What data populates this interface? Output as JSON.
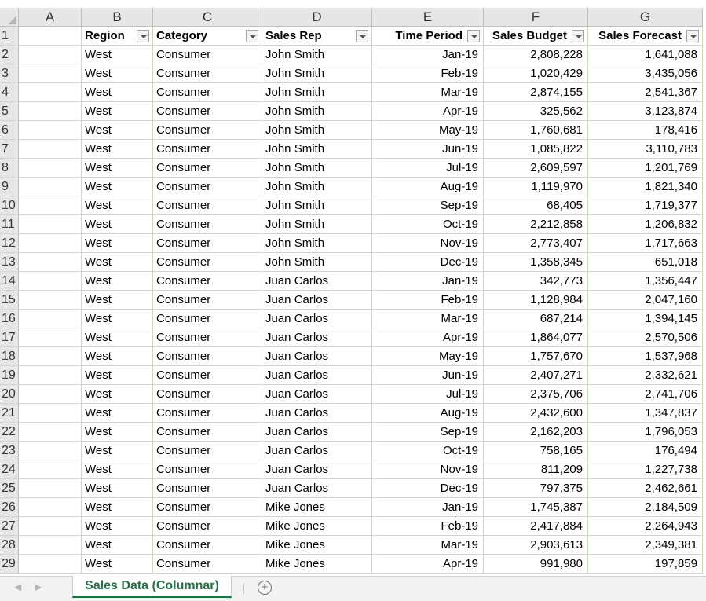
{
  "columns": [
    "A",
    "B",
    "C",
    "D",
    "E",
    "F",
    "G"
  ],
  "headers": {
    "region": "Region",
    "category": "Category",
    "sales_rep": "Sales Rep",
    "time_period": "Time Period",
    "sales_budget": "Sales Budget",
    "sales_forecast": "Sales Forecast"
  },
  "rows": [
    {
      "n": "2",
      "region": "West",
      "category": "Consumer",
      "rep": "John Smith",
      "period": "Jan-19",
      "budget": "2,808,228",
      "forecast": "1,641,088"
    },
    {
      "n": "3",
      "region": "West",
      "category": "Consumer",
      "rep": "John Smith",
      "period": "Feb-19",
      "budget": "1,020,429",
      "forecast": "3,435,056"
    },
    {
      "n": "4",
      "region": "West",
      "category": "Consumer",
      "rep": "John Smith",
      "period": "Mar-19",
      "budget": "2,874,155",
      "forecast": "2,541,367"
    },
    {
      "n": "5",
      "region": "West",
      "category": "Consumer",
      "rep": "John Smith",
      "period": "Apr-19",
      "budget": "325,562",
      "forecast": "3,123,874"
    },
    {
      "n": "6",
      "region": "West",
      "category": "Consumer",
      "rep": "John Smith",
      "period": "May-19",
      "budget": "1,760,681",
      "forecast": "178,416"
    },
    {
      "n": "7",
      "region": "West",
      "category": "Consumer",
      "rep": "John Smith",
      "period": "Jun-19",
      "budget": "1,085,822",
      "forecast": "3,110,783"
    },
    {
      "n": "8",
      "region": "West",
      "category": "Consumer",
      "rep": "John Smith",
      "period": "Jul-19",
      "budget": "2,609,597",
      "forecast": "1,201,769"
    },
    {
      "n": "9",
      "region": "West",
      "category": "Consumer",
      "rep": "John Smith",
      "period": "Aug-19",
      "budget": "1,119,970",
      "forecast": "1,821,340"
    },
    {
      "n": "10",
      "region": "West",
      "category": "Consumer",
      "rep": "John Smith",
      "period": "Sep-19",
      "budget": "68,405",
      "forecast": "1,719,377"
    },
    {
      "n": "11",
      "region": "West",
      "category": "Consumer",
      "rep": "John Smith",
      "period": "Oct-19",
      "budget": "2,212,858",
      "forecast": "1,206,832"
    },
    {
      "n": "12",
      "region": "West",
      "category": "Consumer",
      "rep": "John Smith",
      "period": "Nov-19",
      "budget": "2,773,407",
      "forecast": "1,717,663"
    },
    {
      "n": "13",
      "region": "West",
      "category": "Consumer",
      "rep": "John Smith",
      "period": "Dec-19",
      "budget": "1,358,345",
      "forecast": "651,018"
    },
    {
      "n": "14",
      "region": "West",
      "category": "Consumer",
      "rep": "Juan Carlos",
      "period": "Jan-19",
      "budget": "342,773",
      "forecast": "1,356,447"
    },
    {
      "n": "15",
      "region": "West",
      "category": "Consumer",
      "rep": "Juan Carlos",
      "period": "Feb-19",
      "budget": "1,128,984",
      "forecast": "2,047,160"
    },
    {
      "n": "16",
      "region": "West",
      "category": "Consumer",
      "rep": "Juan Carlos",
      "period": "Mar-19",
      "budget": "687,214",
      "forecast": "1,394,145"
    },
    {
      "n": "17",
      "region": "West",
      "category": "Consumer",
      "rep": "Juan Carlos",
      "period": "Apr-19",
      "budget": "1,864,077",
      "forecast": "2,570,506"
    },
    {
      "n": "18",
      "region": "West",
      "category": "Consumer",
      "rep": "Juan Carlos",
      "period": "May-19",
      "budget": "1,757,670",
      "forecast": "1,537,968"
    },
    {
      "n": "19",
      "region": "West",
      "category": "Consumer",
      "rep": "Juan Carlos",
      "period": "Jun-19",
      "budget": "2,407,271",
      "forecast": "2,332,621"
    },
    {
      "n": "20",
      "region": "West",
      "category": "Consumer",
      "rep": "Juan Carlos",
      "period": "Jul-19",
      "budget": "2,375,706",
      "forecast": "2,741,706"
    },
    {
      "n": "21",
      "region": "West",
      "category": "Consumer",
      "rep": "Juan Carlos",
      "period": "Aug-19",
      "budget": "2,432,600",
      "forecast": "1,347,837"
    },
    {
      "n": "22",
      "region": "West",
      "category": "Consumer",
      "rep": "Juan Carlos",
      "period": "Sep-19",
      "budget": "2,162,203",
      "forecast": "1,796,053"
    },
    {
      "n": "23",
      "region": "West",
      "category": "Consumer",
      "rep": "Juan Carlos",
      "period": "Oct-19",
      "budget": "758,165",
      "forecast": "176,494"
    },
    {
      "n": "24",
      "region": "West",
      "category": "Consumer",
      "rep": "Juan Carlos",
      "period": "Nov-19",
      "budget": "811,209",
      "forecast": "1,227,738"
    },
    {
      "n": "25",
      "region": "West",
      "category": "Consumer",
      "rep": "Juan Carlos",
      "period": "Dec-19",
      "budget": "797,375",
      "forecast": "2,462,661"
    },
    {
      "n": "26",
      "region": "West",
      "category": "Consumer",
      "rep": "Mike Jones",
      "period": "Jan-19",
      "budget": "1,745,387",
      "forecast": "2,184,509"
    },
    {
      "n": "27",
      "region": "West",
      "category": "Consumer",
      "rep": "Mike Jones",
      "period": "Feb-19",
      "budget": "2,417,884",
      "forecast": "2,264,943"
    },
    {
      "n": "28",
      "region": "West",
      "category": "Consumer",
      "rep": "Mike Jones",
      "period": "Mar-19",
      "budget": "2,903,613",
      "forecast": "2,349,381"
    },
    {
      "n": "29",
      "region": "West",
      "category": "Consumer",
      "rep": "Mike Jones",
      "period": "Apr-19",
      "budget": "991,980",
      "forecast": "197,859"
    }
  ],
  "sheet_tab": {
    "label": "Sales Data (Columnar)"
  },
  "add_sheet": {
    "label": "+"
  },
  "nav": {
    "prev": "◀",
    "next": "▶"
  },
  "colors": {
    "accent": "#217346",
    "grid": "#c6dcbb"
  }
}
